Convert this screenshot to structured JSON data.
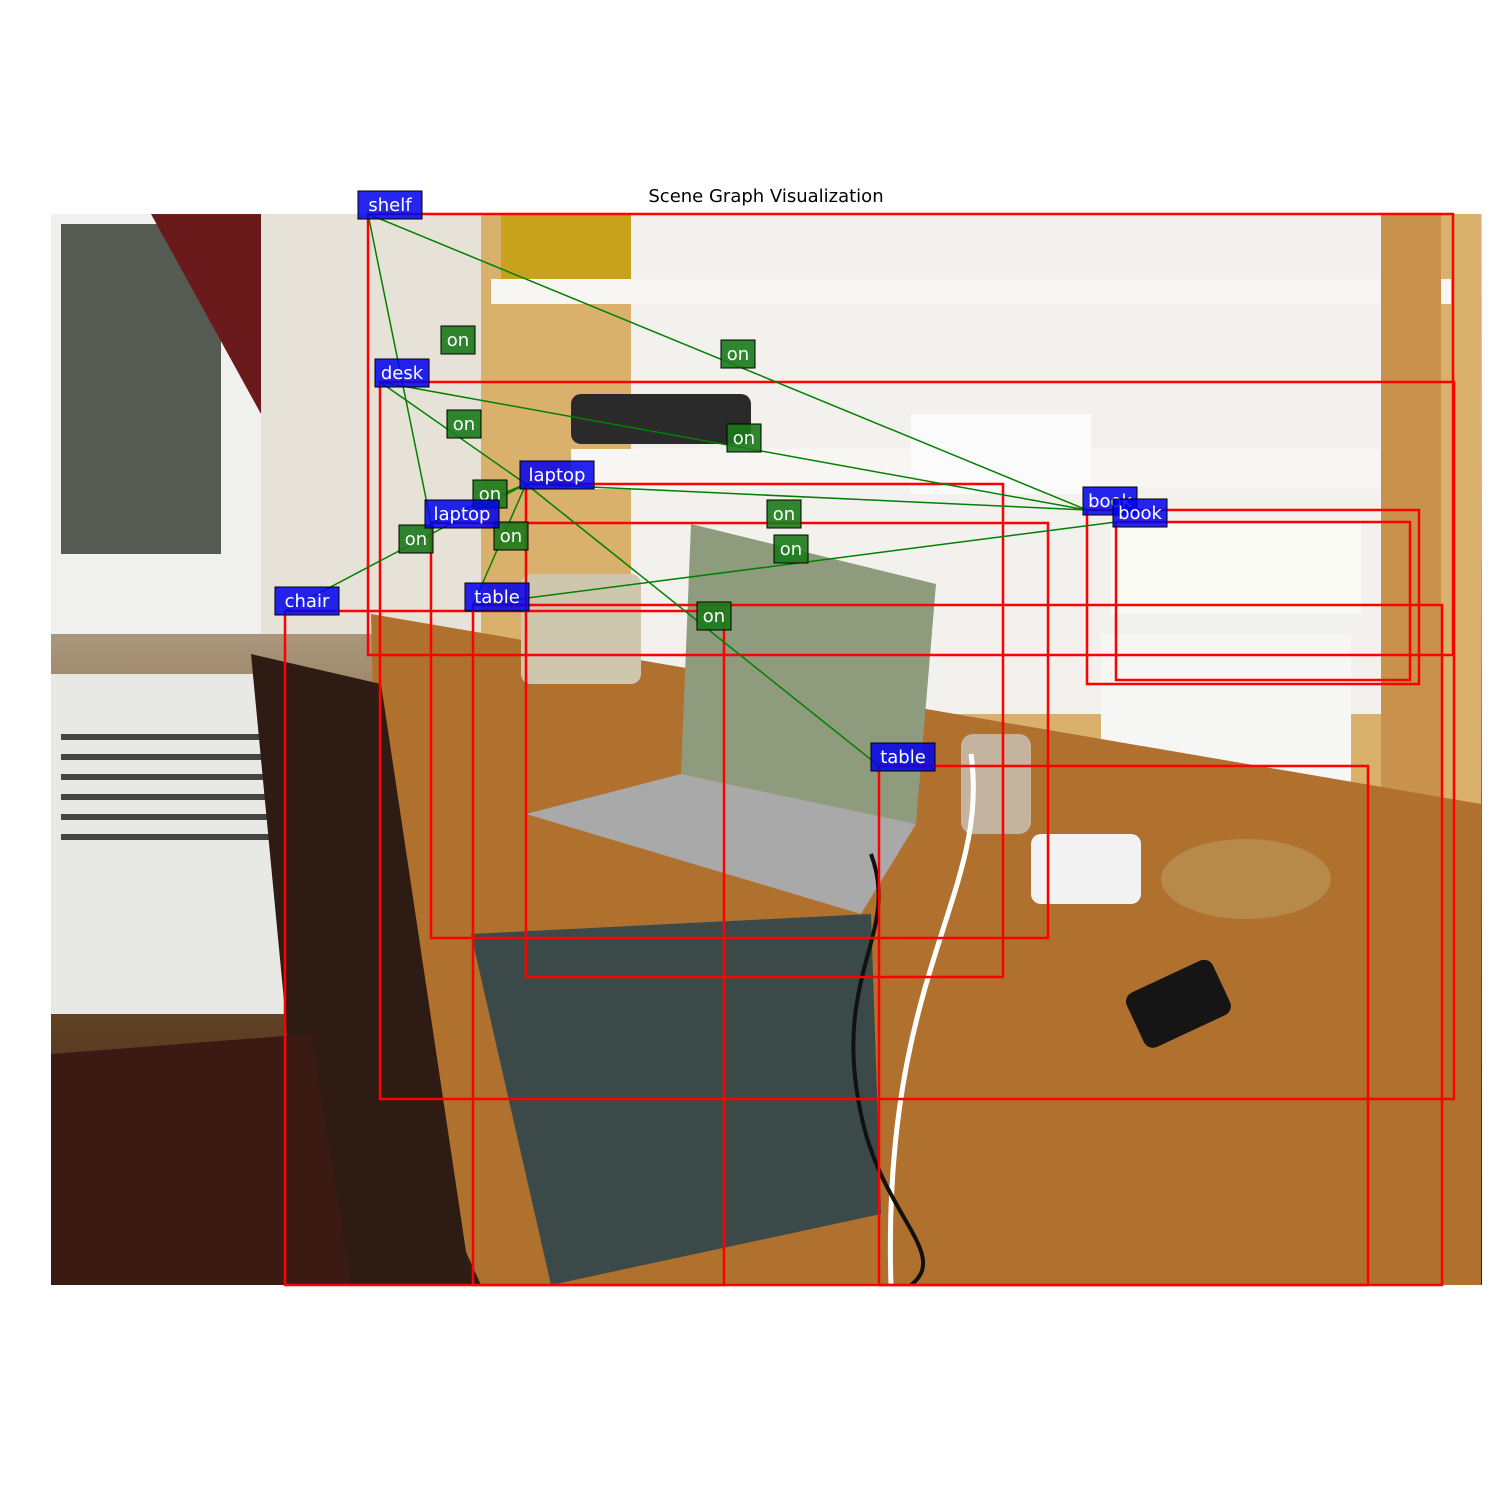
{
  "title": "Scene Graph Visualization",
  "colors": {
    "box": "#ff0000",
    "edge": "#008000",
    "node_bg": "#0000ee",
    "edge_bg": "#1a7a1a",
    "label_text": "#ffffff"
  },
  "image": {
    "description_icon": "photo-dorm-desk",
    "scene": {
      "window": "window-icon",
      "curtain": "curtain-icon",
      "radiator": "radiator-icon",
      "shelf": "shelf-icon",
      "laptop": "laptop-icon",
      "phone": "telephone-icon",
      "chair": "chair-icon"
    }
  },
  "objects": [
    {
      "id": "shelf",
      "label": "shelf"
    },
    {
      "id": "desk",
      "label": "desk"
    },
    {
      "id": "laptop_a",
      "label": "laptop"
    },
    {
      "id": "laptop_b",
      "label": "laptop"
    },
    {
      "id": "chair",
      "label": "chair"
    },
    {
      "id": "table_a",
      "label": "table"
    },
    {
      "id": "table_b",
      "label": "table"
    },
    {
      "id": "book_a",
      "label": "book"
    },
    {
      "id": "book_b",
      "label": "book"
    }
  ],
  "relations": [
    {
      "subject": "shelf",
      "predicate": "on",
      "object": "laptop_b"
    },
    {
      "subject": "shelf",
      "predicate": "on",
      "object": "book_a"
    },
    {
      "subject": "desk",
      "predicate": "on",
      "object": "laptop_a"
    },
    {
      "subject": "desk",
      "predicate": "on",
      "object": "book_a"
    },
    {
      "subject": "laptop_b",
      "predicate": "on",
      "object": "laptop_a"
    },
    {
      "subject": "laptop_a",
      "predicate": "on",
      "object": "book_a"
    },
    {
      "subject": "chair",
      "predicate": "on",
      "object": "laptop_a"
    },
    {
      "subject": "table_a",
      "predicate": "on",
      "object": "laptop_a"
    },
    {
      "subject": "table_a",
      "predicate": "on",
      "object": "book_b"
    },
    {
      "subject": "laptop_a",
      "predicate": "on",
      "object": "table_b"
    }
  ]
}
